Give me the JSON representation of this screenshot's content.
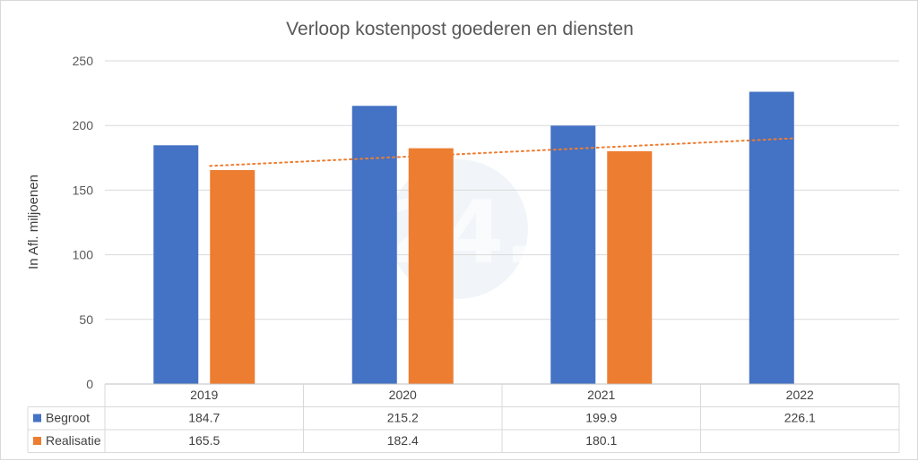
{
  "chart_data": {
    "type": "bar",
    "title": "Verloop kostenpost goederen en diensten",
    "xlabel": "",
    "ylabel": "In Afl. miljoenen",
    "ylim": [
      0,
      250
    ],
    "yticks": [
      0,
      50,
      100,
      150,
      200,
      250
    ],
    "categories": [
      "2019",
      "2020",
      "2021",
      "2022"
    ],
    "series": [
      {
        "name": "Begroot",
        "color": "#4472C4",
        "values": [
          184.7,
          215.2,
          199.9,
          226.1
        ],
        "labels": [
          "184.7",
          "215.2",
          "199.9",
          "226.1"
        ]
      },
      {
        "name": "Realisatie",
        "color": "#ED7D31",
        "values": [
          165.5,
          182.4,
          180.1,
          null
        ],
        "labels": [
          "165.5",
          "182.4",
          "180.1",
          ""
        ]
      }
    ],
    "trendline": {
      "type": "linear",
      "style": "dotted",
      "color": "#ED7D31",
      "start_value": 168.7,
      "end_value": 190.1
    },
    "grid": true,
    "legend": "data-table",
    "data_table": true
  },
  "watermark": {
    "text": "awe24.com"
  }
}
